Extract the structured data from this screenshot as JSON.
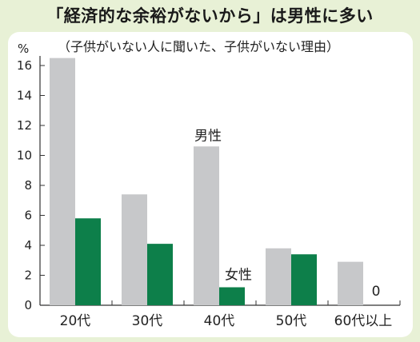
{
  "title": "「経済的な余裕がないから」は男性に多い",
  "chart_data": {
    "type": "bar",
    "subtitle": "（子供がいない人に聞いた、子供がいない理由）",
    "ylabel": "%",
    "ylim": [
      0,
      16
    ],
    "yticks": [
      "0",
      "2",
      "4",
      "6",
      "8",
      "10",
      "12",
      "14",
      "16"
    ],
    "categories": [
      "20代",
      "30代",
      "40代",
      "50代",
      "60代以上"
    ],
    "series": [
      {
        "name": "男性",
        "color": "#c7c8ca",
        "values": [
          16.5,
          7.4,
          10.6,
          3.8,
          2.9
        ]
      },
      {
        "name": "女性",
        "color": "#0d7f4a",
        "values": [
          5.8,
          4.1,
          1.2,
          3.4,
          0
        ]
      }
    ],
    "annotations": {
      "zero_value_label": "0"
    },
    "grid": false
  }
}
